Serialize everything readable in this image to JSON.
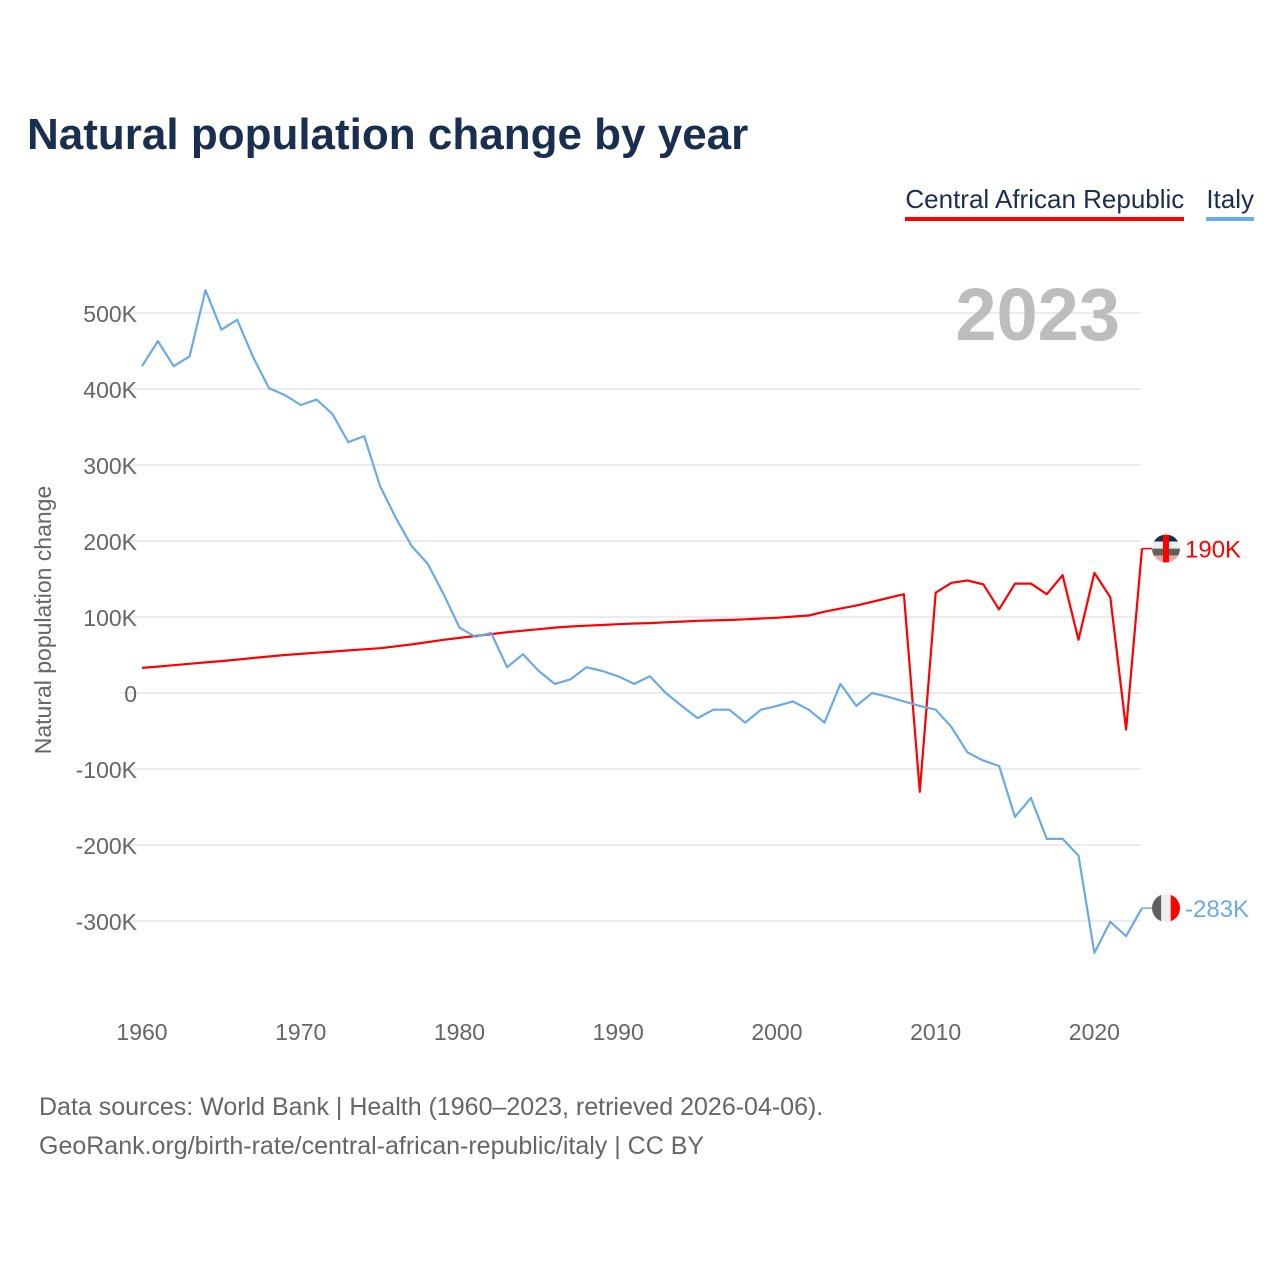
{
  "title": "Natural population change by year",
  "year_label": "2023",
  "footer": {
    "line1": "Data sources: World Bank | Health (1960–2023, retrieved 2026-04-06).",
    "line2": "GeoRank.org/birth-rate/central-african-republic/italy | CC BY"
  },
  "chart_data": {
    "type": "line",
    "title": "Natural population change by year",
    "xlabel": "",
    "ylabel": "Natural population change",
    "xlim": [
      1960,
      2023
    ],
    "ylim": [
      -400000,
      550000
    ],
    "x_ticks": [
      1960,
      1970,
      1980,
      1990,
      2000,
      2010,
      2020
    ],
    "x_tick_labels": [
      "1960",
      "1970",
      "1980",
      "1990",
      "2000",
      "2010",
      "2020"
    ],
    "y_ticks": [
      -300000,
      -200000,
      -100000,
      0,
      100000,
      200000,
      300000,
      400000,
      500000
    ],
    "y_tick_labels": [
      "-300K",
      "-200K",
      "-100K",
      "0",
      "100K",
      "200K",
      "300K",
      "400K",
      "500K"
    ],
    "grid": true,
    "legend_position": "top-right",
    "x": [
      1960,
      1961,
      1962,
      1963,
      1964,
      1965,
      1966,
      1967,
      1968,
      1969,
      1970,
      1971,
      1972,
      1973,
      1974,
      1975,
      1976,
      1977,
      1978,
      1979,
      1980,
      1981,
      1982,
      1983,
      1984,
      1985,
      1986,
      1987,
      1988,
      1989,
      1990,
      1991,
      1992,
      1993,
      1994,
      1995,
      1996,
      1997,
      1998,
      1999,
      2000,
      2001,
      2002,
      2003,
      2004,
      2005,
      2006,
      2007,
      2008,
      2009,
      2010,
      2011,
      2012,
      2013,
      2014,
      2015,
      2016,
      2017,
      2018,
      2019,
      2020,
      2021,
      2022,
      2023
    ],
    "series": [
      {
        "name": "Central African Republic",
        "color": "#ff0000",
        "end_label": "190K",
        "values": [
          33000,
          34800,
          36600,
          38400,
          40200,
          42000,
          44000,
          46000,
          48000,
          50000,
          51500,
          53000,
          54500,
          56000,
          57500,
          59000,
          61500,
          64000,
          67000,
          70000,
          72500,
          75000,
          77500,
          80000,
          82000,
          84000,
          86000,
          87500,
          88500,
          89500,
          90500,
          91500,
          92000,
          93000,
          94000,
          95000,
          95500,
          96000,
          97000,
          98000,
          99000,
          100500,
          102000,
          107000,
          111000,
          115000,
          120000,
          125000,
          130000,
          -130000,
          132000,
          145000,
          148000,
          143000,
          110000,
          144000,
          144000,
          130000,
          155000,
          70000,
          158000,
          126000,
          -48000,
          190000
        ]
      },
      {
        "name": "Italy",
        "color": "#6aaae8",
        "end_label": "-283K",
        "values": [
          430000,
          463000,
          430000,
          443000,
          530000,
          478000,
          491000,
          442000,
          401000,
          392000,
          379000,
          386000,
          367000,
          330000,
          338000,
          272000,
          230000,
          193000,
          170000,
          130000,
          86000,
          74000,
          79000,
          34000,
          51000,
          29000,
          12000,
          18000,
          34000,
          29000,
          22000,
          12000,
          22000,
          0,
          -17000,
          -33000,
          -22000,
          -22000,
          -39000,
          -22000,
          -17000,
          -11000,
          -22000,
          -39000,
          12000,
          -17000,
          0,
          -5000,
          -11000,
          -17000,
          -22000,
          -45000,
          -78000,
          -89000,
          -96000,
          -163000,
          -138000,
          -192000,
          -192000,
          -214000,
          -342000,
          -301000,
          -320000,
          -283000
        ]
      }
    ]
  }
}
